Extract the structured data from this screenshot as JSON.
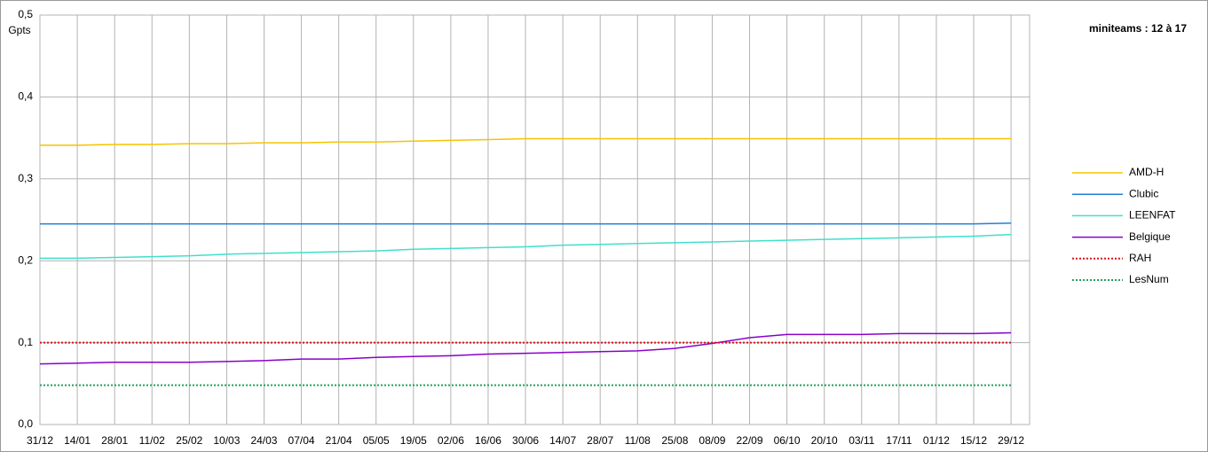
{
  "chart_data": {
    "type": "line",
    "title": "miniteams : 12 à 17",
    "y_label": "Gpts",
    "categories": [
      "31/12",
      "14/01",
      "28/01",
      "11/02",
      "25/02",
      "10/03",
      "24/03",
      "07/04",
      "21/04",
      "05/05",
      "19/05",
      "02/06",
      "16/06",
      "30/06",
      "14/07",
      "28/07",
      "11/08",
      "25/08",
      "08/09",
      "22/09",
      "06/10",
      "20/10",
      "03/11",
      "17/11",
      "01/12",
      "15/12",
      "29/12"
    ],
    "ylim": [
      0,
      0.5
    ],
    "yticks": [
      {
        "value": 0,
        "label": "0,0"
      },
      {
        "value": 0.1,
        "label": "0,1"
      },
      {
        "value": 0.2,
        "label": "0,2"
      },
      {
        "value": 0.3,
        "label": "0,3"
      },
      {
        "value": 0.4,
        "label": "0,4"
      },
      {
        "value": 0.5,
        "label": "0,5"
      }
    ],
    "grid": true,
    "legend": "right",
    "series": [
      {
        "name": "AMD-H",
        "color": "#f5c400",
        "style": "solid",
        "values": [
          0.341,
          0.341,
          0.342,
          0.342,
          0.343,
          0.343,
          0.344,
          0.344,
          0.345,
          0.345,
          0.346,
          0.347,
          0.348,
          0.349,
          0.349,
          0.349,
          0.349,
          0.349,
          0.349,
          0.349,
          0.349,
          0.349,
          0.349,
          0.349,
          0.349,
          0.349,
          0.349
        ]
      },
      {
        "name": "Clubic",
        "color": "#1f7fd6",
        "style": "solid",
        "values": [
          0.245,
          0.245,
          0.245,
          0.245,
          0.245,
          0.245,
          0.245,
          0.245,
          0.245,
          0.245,
          0.245,
          0.245,
          0.245,
          0.245,
          0.245,
          0.245,
          0.245,
          0.245,
          0.245,
          0.245,
          0.245,
          0.245,
          0.245,
          0.245,
          0.245,
          0.245,
          0.246
        ]
      },
      {
        "name": "LEENFAT",
        "color": "#3fe0cc",
        "style": "solid",
        "values": [
          0.203,
          0.203,
          0.204,
          0.205,
          0.206,
          0.208,
          0.209,
          0.21,
          0.211,
          0.212,
          0.214,
          0.215,
          0.216,
          0.217,
          0.219,
          0.22,
          0.221,
          0.222,
          0.223,
          0.224,
          0.225,
          0.226,
          0.227,
          0.228,
          0.229,
          0.23,
          0.232
        ]
      },
      {
        "name": "Belgique",
        "color": "#8a00c8",
        "style": "solid",
        "values": [
          0.074,
          0.075,
          0.076,
          0.076,
          0.076,
          0.077,
          0.078,
          0.08,
          0.08,
          0.082,
          0.083,
          0.084,
          0.086,
          0.087,
          0.088,
          0.089,
          0.09,
          0.093,
          0.099,
          0.106,
          0.11,
          0.11,
          0.11,
          0.111,
          0.111,
          0.111,
          0.112
        ]
      },
      {
        "name": "RAH",
        "color": "#e0101a",
        "style": "dotted",
        "values": [
          0.1,
          0.1,
          0.1,
          0.1,
          0.1,
          0.1,
          0.1,
          0.1,
          0.1,
          0.1,
          0.1,
          0.1,
          0.1,
          0.1,
          0.1,
          0.1,
          0.1,
          0.1,
          0.1,
          0.1,
          0.1,
          0.1,
          0.1,
          0.1,
          0.1,
          0.1,
          0.1
        ]
      },
      {
        "name": "LesNum",
        "color": "#22a060",
        "style": "dotted",
        "values": [
          0.048,
          0.048,
          0.048,
          0.048,
          0.048,
          0.048,
          0.048,
          0.048,
          0.048,
          0.048,
          0.048,
          0.048,
          0.048,
          0.048,
          0.048,
          0.048,
          0.048,
          0.048,
          0.048,
          0.048,
          0.048,
          0.048,
          0.048,
          0.048,
          0.048,
          0.048,
          0.048
        ]
      }
    ]
  }
}
